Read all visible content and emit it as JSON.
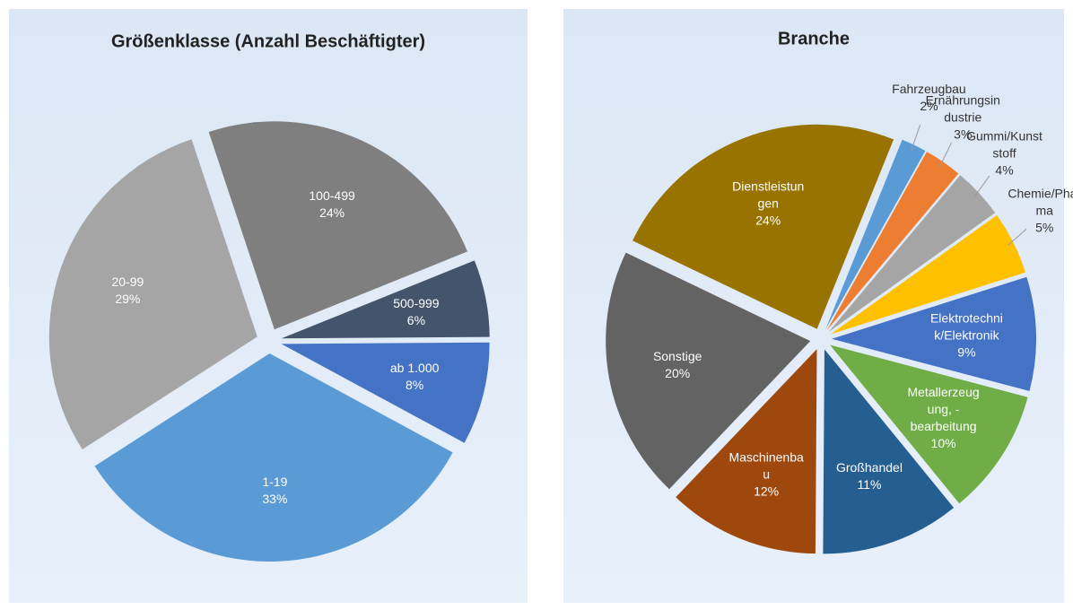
{
  "chart_data": [
    {
      "type": "pie",
      "title": "Größenklasse (Anzahl Beschäftigter)",
      "categories": [
        "500-999",
        "ab 1.000",
        "1-19",
        "20-99",
        "100-499"
      ],
      "values": [
        6,
        8,
        33,
        29,
        24
      ],
      "value_labels": [
        "6%",
        "8%",
        "33%",
        "29%",
        "24%"
      ],
      "colors": [
        "#44546a",
        "#4472c4",
        "#5b9bd5",
        "#a5a5a5",
        "#7f7f7f"
      ]
    },
    {
      "type": "pie",
      "title": "Branche",
      "categories": [
        "Fahrzeugbau",
        "Ernährungsindustrie",
        "Gummi/Kunststoff",
        "Chemie/Pharma",
        "Elektrotechnik/Elektronik",
        "Metallerzeugung, -bearbeitung",
        "Großhandel",
        "Maschinenbau",
        "Sonstige",
        "Dienstleistungen"
      ],
      "values": [
        2,
        3,
        4,
        5,
        9,
        10,
        11,
        12,
        20,
        24
      ],
      "value_labels": [
        "2%",
        "3%",
        "4%",
        "5%",
        "9%",
        "10%",
        "11%",
        "12%",
        "20%",
        "24%"
      ],
      "colors": [
        "#5b9bd5",
        "#ed7d31",
        "#a5a5a5",
        "#ffc000",
        "#4472c4",
        "#70ad47",
        "#255e91",
        "#9e480e",
        "#636363",
        "#997300"
      ]
    }
  ]
}
